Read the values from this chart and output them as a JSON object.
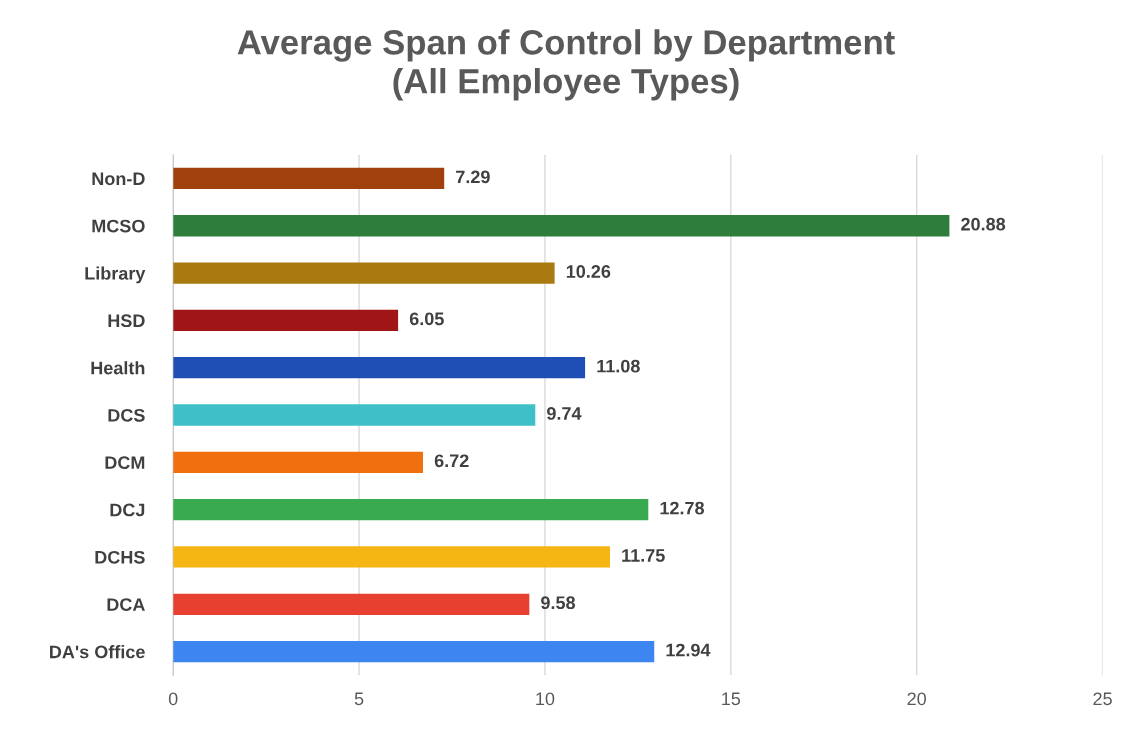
{
  "chart_data": {
    "type": "bar",
    "orientation": "horizontal",
    "title": "Average Span of Control by Department\n(All Employee Types)",
    "categories": [
      "Non-D",
      "MCSO",
      "Library",
      "HSD",
      "Health",
      "DCS",
      "DCM",
      "DCJ",
      "DCHS",
      "DCA",
      "DA's Office"
    ],
    "values": [
      7.29,
      20.88,
      10.26,
      6.05,
      11.08,
      9.74,
      6.72,
      12.78,
      11.75,
      9.58,
      12.94
    ],
    "colors": [
      "#a0410d",
      "#2e7d3c",
      "#a87a0f",
      "#a01515",
      "#1f4fb5",
      "#3fc0c8",
      "#f07010",
      "#3aaa50",
      "#f5b512",
      "#e84030",
      "#3d85f0"
    ],
    "xlim": [
      0,
      25
    ],
    "xticks": [
      0,
      5,
      10,
      15,
      20,
      25
    ],
    "grid": "x",
    "data_labels": true
  }
}
